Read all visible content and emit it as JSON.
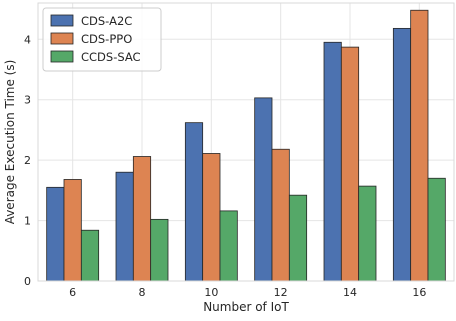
{
  "chart_data": {
    "type": "bar",
    "xlabel": "Number of IoT",
    "ylabel": "Average Execution Time (s)",
    "categories": [
      "6",
      "8",
      "10",
      "12",
      "14",
      "16"
    ],
    "ylim": [
      0,
      4.6
    ],
    "yticks": [
      0,
      1,
      2,
      3,
      4
    ],
    "grid": true,
    "legend_position": "top-left",
    "series": [
      {
        "name": "CDS-A2C",
        "color": "#4c72b0",
        "values": [
          1.55,
          1.8,
          2.62,
          3.03,
          3.95,
          4.18
        ]
      },
      {
        "name": "CDS-PPO",
        "color": "#dd8452",
        "values": [
          1.68,
          2.06,
          2.11,
          2.18,
          3.87,
          4.48
        ]
      },
      {
        "name": "CCDS-SAC",
        "color": "#55a868",
        "values": [
          0.84,
          1.02,
          1.16,
          1.42,
          1.57,
          1.7
        ]
      }
    ]
  }
}
